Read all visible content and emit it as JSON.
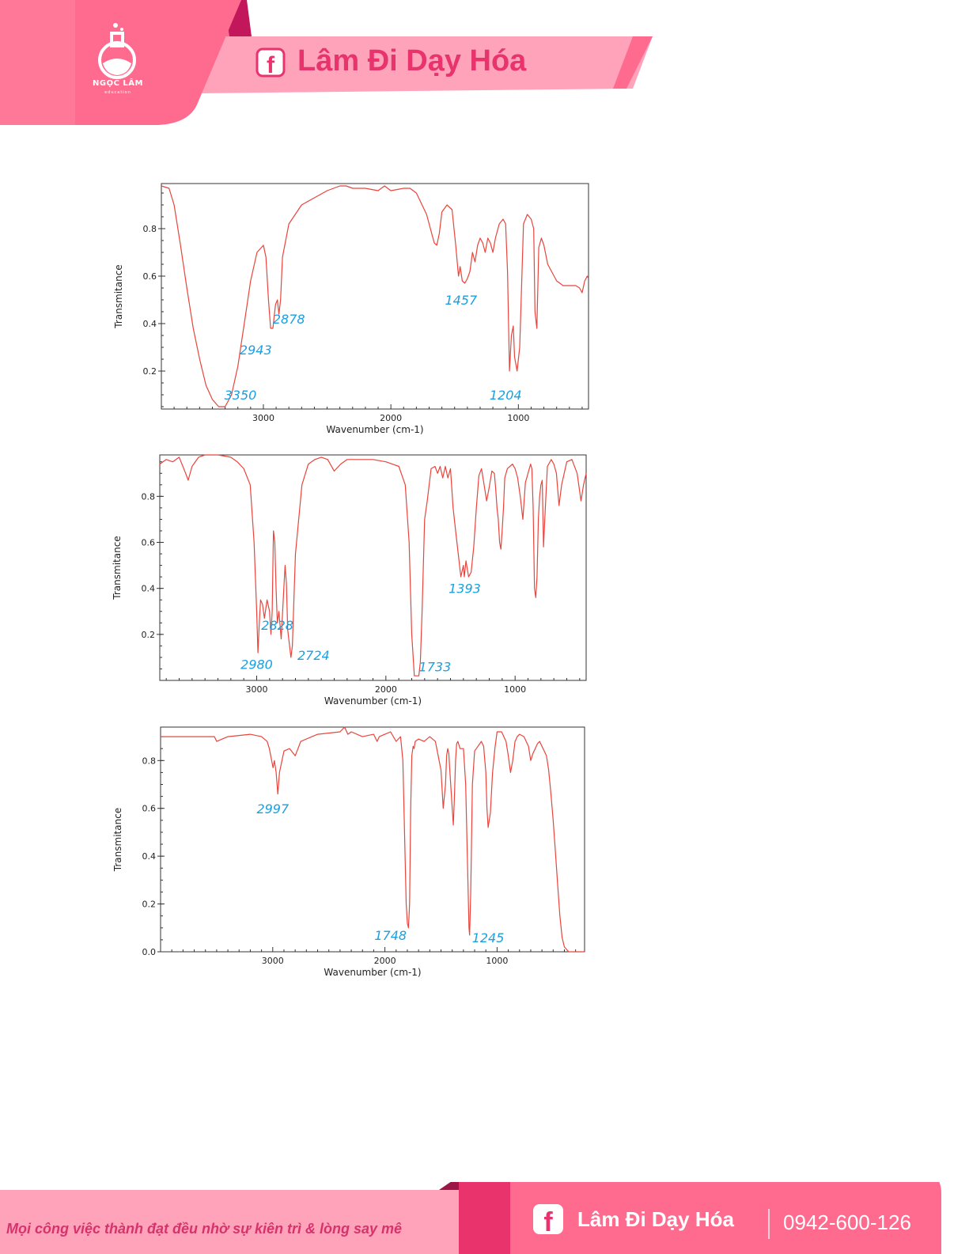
{
  "header": {
    "logo_text": "NGỌC LÂM",
    "logo_sub": "education",
    "brand": "Lâm Đi Dạy Hóa",
    "facebook_icon": "facebook-icon",
    "colors": {
      "primary": "#ff6b8f",
      "dark": "#c2185b",
      "light": "#ffa3bb",
      "text": "#e8336d"
    }
  },
  "footer": {
    "slogan": "Mọi công việc thành đạt đều nhờ sự kiên trì & lòng say mê",
    "brand": "Lâm Đi Dạy Hóa",
    "phone": "0942-600-126"
  },
  "chart_data": [
    {
      "type": "line",
      "xlabel": "Wavenumber (cm-1)",
      "ylabel": "Transmitance",
      "xlim": [
        3800,
        450
      ],
      "ylim": [
        0.04,
        0.99
      ],
      "xticks": [
        3000,
        2000,
        1000
      ],
      "yticks": [
        0.2,
        0.4,
        0.6,
        0.8
      ],
      "line_color": "#e8453c",
      "annotation_color": "#1a9fe0",
      "series": [
        {
          "x": [
            3800,
            3740,
            3700,
            3650,
            3600,
            3550,
            3500,
            3450,
            3400,
            3350,
            3300,
            3250,
            3200,
            3150,
            3100,
            3050,
            3000,
            2980,
            2960,
            2943,
            2925,
            2905,
            2890,
            2878,
            2865,
            2850,
            2800,
            2700,
            2600,
            2500,
            2400,
            2350,
            2300,
            2200,
            2100,
            2050,
            2000,
            1900,
            1850,
            1800,
            1720,
            1680,
            1660,
            1640,
            1620,
            1600,
            1560,
            1520,
            1490,
            1470,
            1457,
            1440,
            1420,
            1400,
            1380,
            1360,
            1340,
            1320,
            1300,
            1280,
            1260,
            1240,
            1220,
            1200,
            1180,
            1150,
            1120,
            1100,
            1085,
            1070,
            1055,
            1040,
            1030,
            1010,
            990,
            960,
            930,
            900,
            880,
            870,
            855,
            840,
            820,
            800,
            770,
            700,
            650,
            600,
            550,
            520,
            500,
            480,
            460,
            450
          ],
          "y": [
            0.98,
            0.97,
            0.9,
            0.73,
            0.55,
            0.38,
            0.25,
            0.14,
            0.08,
            0.05,
            0.05,
            0.1,
            0.22,
            0.4,
            0.58,
            0.7,
            0.73,
            0.68,
            0.5,
            0.38,
            0.38,
            0.48,
            0.5,
            0.44,
            0.5,
            0.68,
            0.82,
            0.9,
            0.93,
            0.96,
            0.98,
            0.98,
            0.97,
            0.97,
            0.96,
            0.98,
            0.96,
            0.97,
            0.97,
            0.95,
            0.86,
            0.78,
            0.74,
            0.73,
            0.78,
            0.87,
            0.9,
            0.88,
            0.72,
            0.6,
            0.64,
            0.58,
            0.57,
            0.59,
            0.62,
            0.7,
            0.66,
            0.73,
            0.76,
            0.74,
            0.7,
            0.76,
            0.74,
            0.7,
            0.76,
            0.82,
            0.84,
            0.82,
            0.62,
            0.2,
            0.35,
            0.39,
            0.26,
            0.2,
            0.3,
            0.82,
            0.86,
            0.84,
            0.8,
            0.45,
            0.38,
            0.72,
            0.76,
            0.73,
            0.65,
            0.58,
            0.56,
            0.56,
            0.56,
            0.55,
            0.53,
            0.58,
            0.6,
            0.59
          ]
        }
      ],
      "annotations": [
        {
          "text": "3350",
          "x": 3180,
          "y": 0.08
        },
        {
          "text": "2943",
          "x": 3060,
          "y": 0.27
        },
        {
          "text": "2878",
          "x": 2800,
          "y": 0.4
        },
        {
          "text": "1457",
          "x": 1450,
          "y": 0.48
        },
        {
          "text": "1204",
          "x": 1100,
          "y": 0.08
        }
      ]
    },
    {
      "type": "line",
      "xlabel": "Wavenumber (cm-1)",
      "ylabel": "Transmitance",
      "xlim": [
        3750,
        450
      ],
      "ylim": [
        0.0,
        0.98
      ],
      "xticks": [
        3000,
        2000,
        1000
      ],
      "yticks": [
        0.2,
        0.4,
        0.6,
        0.8
      ],
      "line_color": "#e8453c",
      "annotation_color": "#1a9fe0",
      "series": [
        {
          "x": [
            3750,
            3700,
            3650,
            3600,
            3550,
            3530,
            3500,
            3450,
            3400,
            3300,
            3200,
            3150,
            3100,
            3050,
            3020,
            3000,
            2990,
            2980,
            2970,
            2955,
            2940,
            2920,
            2900,
            2890,
            2880,
            2870,
            2860,
            2850,
            2840,
            2828,
            2810,
            2790,
            2780,
            2770,
            2760,
            2745,
            2735,
            2724,
            2700,
            2650,
            2600,
            2550,
            2500,
            2450,
            2400,
            2350,
            2300,
            2200,
            2100,
            2000,
            1950,
            1900,
            1850,
            1820,
            1800,
            1780,
            1760,
            1745,
            1733,
            1720,
            1710,
            1700,
            1680,
            1650,
            1620,
            1600,
            1580,
            1560,
            1540,
            1520,
            1500,
            1480,
            1460,
            1440,
            1420,
            1400,
            1393,
            1380,
            1360,
            1340,
            1320,
            1300,
            1280,
            1260,
            1240,
            1220,
            1200,
            1180,
            1160,
            1150,
            1140,
            1130,
            1120,
            1110,
            1100,
            1090,
            1080,
            1060,
            1040,
            1020,
            1000,
            980,
            960,
            940,
            920,
            900,
            880,
            870,
            860,
            850,
            840,
            830,
            820,
            810,
            800,
            790,
            780,
            770,
            750,
            720,
            700,
            680,
            660,
            640,
            600,
            560,
            520,
            490,
            470,
            450
          ],
          "y": [
            0.94,
            0.96,
            0.95,
            0.97,
            0.9,
            0.87,
            0.93,
            0.97,
            0.98,
            0.98,
            0.97,
            0.95,
            0.92,
            0.85,
            0.6,
            0.3,
            0.12,
            0.25,
            0.35,
            0.33,
            0.27,
            0.35,
            0.3,
            0.2,
            0.3,
            0.65,
            0.6,
            0.4,
            0.25,
            0.3,
            0.18,
            0.4,
            0.5,
            0.42,
            0.22,
            0.15,
            0.1,
            0.15,
            0.55,
            0.85,
            0.94,
            0.96,
            0.97,
            0.96,
            0.91,
            0.94,
            0.96,
            0.96,
            0.96,
            0.95,
            0.94,
            0.93,
            0.85,
            0.6,
            0.2,
            0.02,
            0.02,
            0.02,
            0.08,
            0.3,
            0.5,
            0.7,
            0.78,
            0.92,
            0.93,
            0.9,
            0.93,
            0.88,
            0.93,
            0.88,
            0.92,
            0.75,
            0.65,
            0.55,
            0.45,
            0.5,
            0.45,
            0.52,
            0.45,
            0.47,
            0.58,
            0.75,
            0.89,
            0.92,
            0.85,
            0.78,
            0.84,
            0.91,
            0.9,
            0.83,
            0.75,
            0.7,
            0.6,
            0.57,
            0.65,
            0.75,
            0.88,
            0.92,
            0.93,
            0.94,
            0.92,
            0.88,
            0.8,
            0.7,
            0.86,
            0.9,
            0.94,
            0.92,
            0.75,
            0.4,
            0.36,
            0.45,
            0.7,
            0.8,
            0.85,
            0.87,
            0.58,
            0.7,
            0.93,
            0.96,
            0.94,
            0.9,
            0.76,
            0.85,
            0.95,
            0.96,
            0.9,
            0.78,
            0.85,
            0.9
          ]
        }
      ],
      "annotations": [
        {
          "text": "2980",
          "x": 3000,
          "y": 0.05
        },
        {
          "text": "2828",
          "x": 2840,
          "y": 0.22
        },
        {
          "text": "2724",
          "x": 2560,
          "y": 0.09
        },
        {
          "text": "1733",
          "x": 1620,
          "y": 0.04
        },
        {
          "text": "1393",
          "x": 1390,
          "y": 0.38
        }
      ]
    },
    {
      "type": "line",
      "xlabel": "Wavenumber (cm-1)",
      "ylabel": "Transmitance",
      "xlim": [
        4000,
        220
      ],
      "ylim": [
        0.0,
        0.94
      ],
      "xticks": [
        3000,
        2000,
        1000
      ],
      "yticks": [
        0.0,
        0.2,
        0.4,
        0.6,
        0.8
      ],
      "line_color": "#e8453c",
      "annotation_color": "#1a9fe0",
      "series": [
        {
          "x": [
            4000,
            3800,
            3600,
            3520,
            3500,
            3400,
            3200,
            3100,
            3050,
            3030,
            3010,
            2997,
            2985,
            2970,
            2955,
            2940,
            2900,
            2850,
            2800,
            2750,
            2600,
            2400,
            2360,
            2330,
            2300,
            2200,
            2100,
            2070,
            2050,
            2000,
            1950,
            1900,
            1860,
            1840,
            1820,
            1810,
            1800,
            1790,
            1780,
            1770,
            1760,
            1748,
            1740,
            1730,
            1700,
            1650,
            1600,
            1550,
            1500,
            1480,
            1460,
            1450,
            1440,
            1430,
            1420,
            1400,
            1390,
            1380,
            1370,
            1360,
            1350,
            1330,
            1300,
            1280,
            1260,
            1250,
            1245,
            1235,
            1220,
            1200,
            1170,
            1140,
            1120,
            1100,
            1090,
            1080,
            1060,
            1040,
            1020,
            1000,
            960,
            920,
            900,
            880,
            860,
            840,
            820,
            800,
            760,
            720,
            700,
            680,
            660,
            640,
            620,
            600,
            580,
            560,
            540,
            520,
            500,
            480,
            460,
            440,
            420,
            400,
            380,
            360,
            340,
            320,
            300,
            280,
            260,
            240,
            220
          ],
          "y": [
            0.9,
            0.9,
            0.9,
            0.9,
            0.88,
            0.9,
            0.91,
            0.9,
            0.88,
            0.85,
            0.8,
            0.77,
            0.8,
            0.75,
            0.66,
            0.75,
            0.84,
            0.85,
            0.82,
            0.88,
            0.91,
            0.92,
            0.94,
            0.91,
            0.92,
            0.9,
            0.91,
            0.88,
            0.9,
            0.91,
            0.92,
            0.88,
            0.9,
            0.8,
            0.4,
            0.2,
            0.12,
            0.1,
            0.2,
            0.6,
            0.82,
            0.86,
            0.85,
            0.88,
            0.89,
            0.88,
            0.9,
            0.88,
            0.76,
            0.6,
            0.7,
            0.82,
            0.85,
            0.83,
            0.75,
            0.6,
            0.53,
            0.65,
            0.8,
            0.87,
            0.88,
            0.85,
            0.85,
            0.7,
            0.3,
            0.1,
            0.07,
            0.25,
            0.7,
            0.84,
            0.86,
            0.88,
            0.86,
            0.75,
            0.6,
            0.52,
            0.58,
            0.75,
            0.85,
            0.92,
            0.92,
            0.88,
            0.82,
            0.75,
            0.8,
            0.88,
            0.9,
            0.91,
            0.9,
            0.86,
            0.8,
            0.83,
            0.85,
            0.87,
            0.88,
            0.86,
            0.84,
            0.82,
            0.76,
            0.66,
            0.55,
            0.42,
            0.28,
            0.15,
            0.06,
            0.02,
            0.01,
            0.0,
            0.0,
            0.0,
            0.0,
            0.0,
            0.0,
            0.0,
            0.0
          ]
        }
      ],
      "annotations": [
        {
          "text": "2997",
          "x": 3000,
          "y": 0.58
        },
        {
          "text": "1748",
          "x": 1950,
          "y": 0.05
        },
        {
          "text": "1245",
          "x": 1080,
          "y": 0.04
        }
      ]
    }
  ]
}
